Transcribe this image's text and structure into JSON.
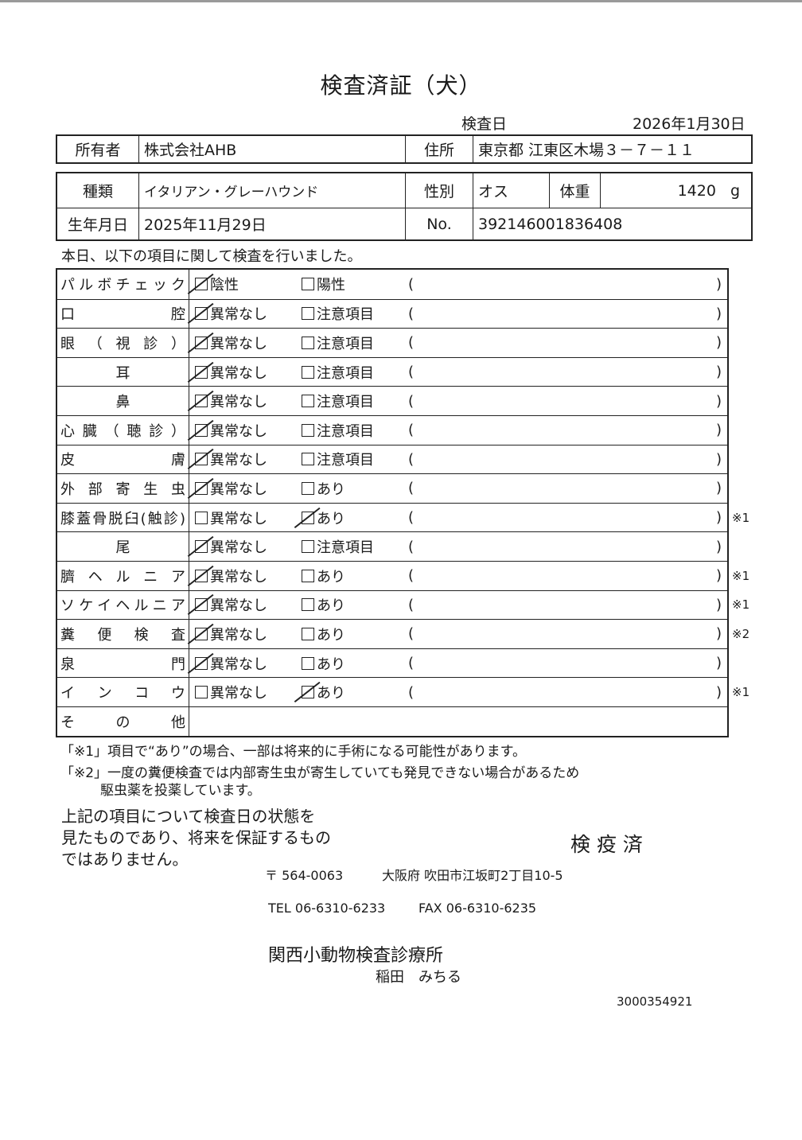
{
  "title": "検査済証（犬）",
  "exam_date_label": "検査日",
  "exam_date": "2026年1月30日",
  "owner": {
    "label": "所有者",
    "value": "株式会社AHB",
    "address_label": "住所",
    "address": "東京都 江東区木場３－７－１１"
  },
  "animal": {
    "breed_label": "種類",
    "breed": "イタリアン・グレーハウンド",
    "sex_label": "性別",
    "sex": "オス",
    "weight_label": "体重",
    "weight": "1420",
    "weight_unit": "g",
    "birth_label": "生年月日",
    "birth": "2025年11月29日",
    "no_label": "No.",
    "no": "392146001836408"
  },
  "intro": "本日、以下の項目に関して検査を行いました。",
  "paren_open": "(",
  "paren_close": ")",
  "rows": [
    {
      "label": "パルボチェック",
      "opt1": "陰性",
      "opt2": "陽性",
      "checked": 1,
      "note": ""
    },
    {
      "label": "口腔",
      "opt1": "異常なし",
      "opt2": "注意項目",
      "checked": 1,
      "note": ""
    },
    {
      "label": "眼（視診）",
      "opt1": "異常なし",
      "opt2": "注意項目",
      "checked": 1,
      "note": ""
    },
    {
      "label": "耳",
      "center": true,
      "opt1": "異常なし",
      "opt2": "注意項目",
      "checked": 1,
      "note": ""
    },
    {
      "label": "鼻",
      "center": true,
      "opt1": "異常なし",
      "opt2": "注意項目",
      "checked": 1,
      "note": ""
    },
    {
      "label": "心臓（聴診）",
      "opt1": "異常なし",
      "opt2": "注意項目",
      "checked": 1,
      "note": ""
    },
    {
      "label": "皮膚",
      "opt1": "異常なし",
      "opt2": "注意項目",
      "checked": 1,
      "note": ""
    },
    {
      "label": "外部寄生虫",
      "opt1": "異常なし",
      "opt2": "あり",
      "checked": 1,
      "note": ""
    },
    {
      "label": "膝蓋骨脱臼(触診)",
      "opt1": "異常なし",
      "opt2": "あり",
      "checked": 2,
      "note": "※1"
    },
    {
      "label": "尾",
      "center": true,
      "opt1": "異常なし",
      "opt2": "注意項目",
      "checked": 1,
      "note": ""
    },
    {
      "label": "臍ヘルニア",
      "opt1": "異常なし",
      "opt2": "あり",
      "checked": 1,
      "note": "※1"
    },
    {
      "label": "ソケイヘルニア",
      "opt1": "異常なし",
      "opt2": "あり",
      "checked": 1,
      "note": "※1"
    },
    {
      "label": "糞便検査",
      "opt1": "異常なし",
      "opt2": "あり",
      "checked": 1,
      "note": "※2"
    },
    {
      "label": "泉門",
      "opt1": "異常なし",
      "opt2": "あり",
      "checked": 1,
      "note": ""
    },
    {
      "label": "インコウ",
      "opt1": "異常なし",
      "opt2": "あり",
      "checked": 2,
      "note": "※1"
    }
  ],
  "other_label": "その他",
  "notes": [
    "「※1」項目で“あり”の場合、一部は将来的に手術になる可能性があります。",
    "「※2」一度の糞便検査では内部寄生虫が寄生していても発見できない場合があるため",
    "駆虫薬を投薬しています。"
  ],
  "disclaimer": [
    "上記の項目について検査日の状態を",
    "見たものであり、将来を保証するもの",
    "ではありません。"
  ],
  "quarantine_stamp": "検 疫 済",
  "clinic": {
    "postal": "〒 564-0063",
    "address": "大阪府 吹田市江坂町2丁目10-5",
    "tel": "TEL 06-6310-6233",
    "fax": "FAX 06-6310-6235",
    "name": "関西小動物検査診療所",
    "doctor": "稲田　みちる"
  },
  "doc_number": "3000354921"
}
